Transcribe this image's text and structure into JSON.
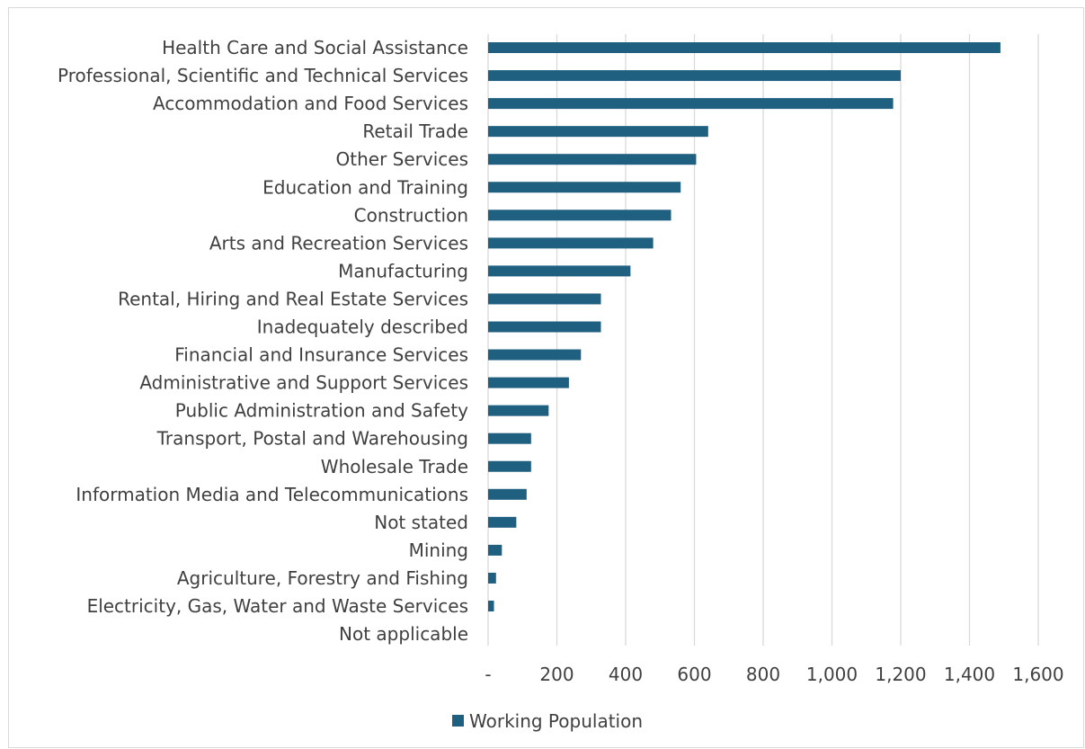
{
  "chart_data": {
    "type": "bar",
    "orientation": "horizontal",
    "title": "",
    "xlabel": "",
    "ylabel": "",
    "xlim": [
      0,
      1600
    ],
    "grid": true,
    "legend": "bottom",
    "bar_color": "#1f5f7f",
    "x_ticks": [
      {
        "value": 0,
        "label": "-"
      },
      {
        "value": 200,
        "label": "200"
      },
      {
        "value": 400,
        "label": "400"
      },
      {
        "value": 600,
        "label": "600"
      },
      {
        "value": 800,
        "label": "800"
      },
      {
        "value": 1000,
        "label": "1,000"
      },
      {
        "value": 1200,
        "label": "1,200"
      },
      {
        "value": 1400,
        "label": "1,400"
      },
      {
        "value": 1600,
        "label": "1,600"
      }
    ],
    "categories": [
      "Health Care and Social Assistance",
      "Professional, Scientific and Technical Services",
      "Accommodation and Food Services",
      "Retail Trade",
      "Other Services",
      "Education and Training",
      "Construction",
      "Arts and Recreation Services",
      "Manufacturing",
      "Rental, Hiring and Real Estate Services",
      "Inadequately described",
      "Financial and Insurance Services",
      "Administrative and Support Services",
      "Public Administration and Safety",
      "Transport, Postal and Warehousing",
      "Wholesale Trade",
      "Information Media and Telecommunications",
      "Not stated",
      "Mining",
      "Agriculture, Forestry and Fishing",
      "Electricity, Gas, Water and Waste Services",
      "Not applicable"
    ],
    "series": [
      {
        "name": "Working Population",
        "values": [
          1490,
          1200,
          1178,
          640,
          605,
          560,
          532,
          480,
          414,
          328,
          328,
          270,
          235,
          176,
          125,
          125,
          112,
          82,
          40,
          23,
          17,
          0
        ]
      }
    ]
  }
}
